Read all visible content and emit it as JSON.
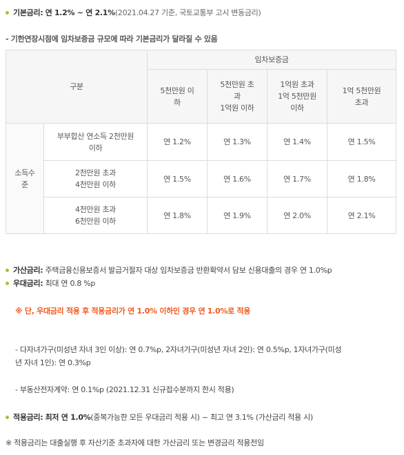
{
  "base_rate": {
    "label": "기본금리:",
    "range": "연 1.2% ~ 연 2.1%",
    "note": "(2021.04.27 기준, 국토교통부 고시 변동금리)"
  },
  "section_title": "- 기한연장시점에 임차보증금 규모에 따라 기본금리가 달라질 수 있음",
  "table": {
    "col_group_header": "구분",
    "deposit_header": "임차보증금",
    "deposit_cols": [
      [
        "5천만원 이",
        "하"
      ],
      [
        "5천만원 초",
        "과",
        "1억원 이하"
      ],
      [
        "1억원 초과",
        "1억 5천만원",
        "이하"
      ],
      [
        "1억 5천만원",
        "초과"
      ]
    ],
    "income_header": [
      "소득수",
      "준"
    ],
    "rows": [
      {
        "label": [
          "부부합산 연소득 2천만원",
          "이하"
        ],
        "values": [
          "연 1.2%",
          "연 1.3%",
          "연 1.4%",
          "연 1.5%"
        ]
      },
      {
        "label": [
          "2천만원 초과",
          "4천만원 이하"
        ],
        "values": [
          "연 1.5%",
          "연 1.6%",
          "연 1.7%",
          "연 1.8%"
        ]
      },
      {
        "label": [
          "4천만원 초과",
          "6천만원 이하"
        ],
        "values": [
          "연 1.8%",
          "연 1.9%",
          "연 2.0%",
          "연 2.1%"
        ]
      }
    ]
  },
  "surcharge": {
    "label": "가산금리:",
    "text": "주택금융신용보증서 발급거절자 대상 임차보증금 반환확약서 담보 신용대출의 경우 연 1.0%p"
  },
  "preferential": {
    "label": "우대금리:",
    "text": "최대 연 0.8 %p"
  },
  "warning": "※ 단, 우대금리 적용 후 적용금리가 연 1.0% 이하인 경우 연 1.0%로 적용",
  "children_line1": "- 다자녀가구(미성년 자녀 3인 이상): 연 0.7%p, 2자녀가구(미성년 자녀 2인): 연 0.5%p, 1자녀가구(미성",
  "children_line2": "년 자녀 1인): 연 0.3%p",
  "e_contract": "- 부동산전자계약: 연 0.1%p (2021.12.31 신규접수분까지 한시 적용)",
  "applied_rate": {
    "label": "적용금리:",
    "min": "최저 연 1.0%",
    "text": "(중복가능한 모든 우대금리 적용 시) ~ 최고 연 3.1% (가산금리 적용 시)"
  },
  "footnote": "※ 적용금리는 대출실행 후 자산기준 초과자에 대한 가산금리 또는 변경금리 적용전임",
  "colors": {
    "bullet": "#9fc43a",
    "warning": "#f05a1e",
    "border": "#dcdcdc",
    "header_bg": "#f6f6f6"
  }
}
